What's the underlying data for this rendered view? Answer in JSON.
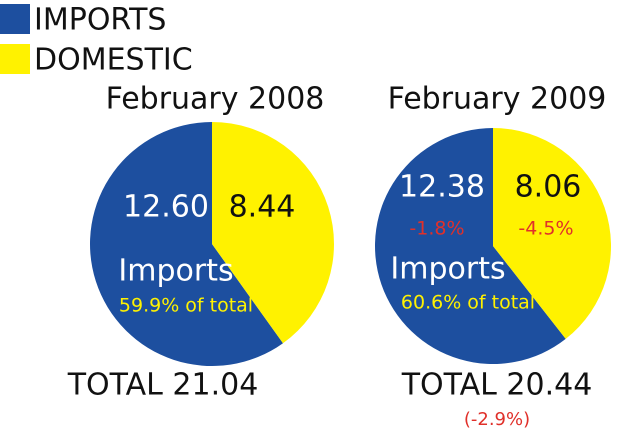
{
  "legend": [
    {
      "name": "IMPORTS",
      "color": "#1d4f9f"
    },
    {
      "name": "DOMESTIC",
      "color": "#fff200"
    }
  ],
  "chart_data": [
    {
      "type": "pie",
      "title": "February 2008",
      "categories": [
        "Imports",
        "Domestic"
      ],
      "values": [
        12.6,
        8.44
      ],
      "value_labels": [
        "12.60",
        "8.44"
      ],
      "colors": [
        "#1d4f9f",
        "#fff200"
      ],
      "slice_caption": "Imports",
      "share_label": "59.9% of total",
      "total_label": "TOTAL 21.04"
    },
    {
      "type": "pie",
      "title": "February 2009",
      "categories": [
        "Imports",
        "Domestic"
      ],
      "values": [
        12.38,
        8.06
      ],
      "value_labels": [
        "12.38",
        "8.06"
      ],
      "change_labels": [
        "-1.8%",
        "-4.5%"
      ],
      "colors": [
        "#1d4f9f",
        "#fff200"
      ],
      "slice_caption": "Imports",
      "share_label": "60.6% of total",
      "total_label": "TOTAL 20.44",
      "total_change_label": "(-2.9%)"
    }
  ]
}
